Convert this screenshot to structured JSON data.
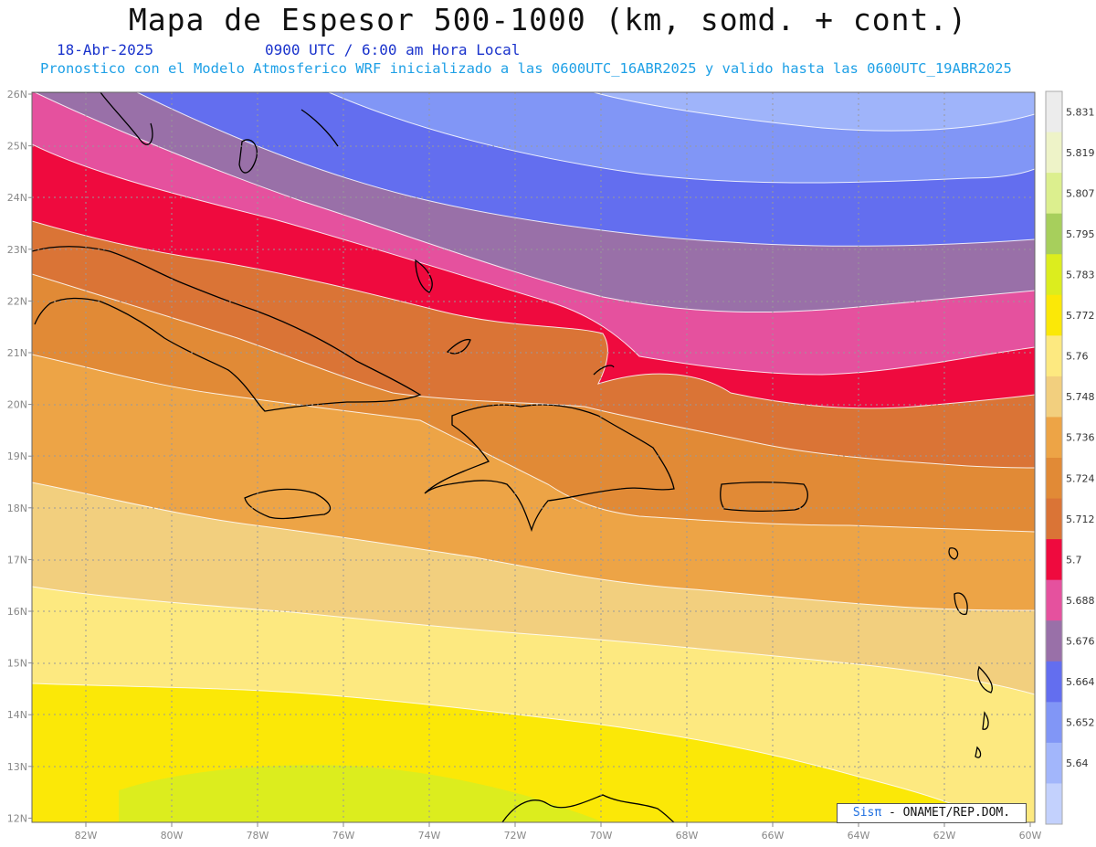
{
  "header": {
    "title": "Mapa de Espesor 500-1000 (km, somd. + cont.)",
    "date": "18-Abr-2025",
    "time": "0900 UTC / 6:00 am Hora Local",
    "info": "Pronostico con el Modelo Atmosferico WRF inicializado a las 0600UTC_16ABR2025 y valido hasta las  0600UTC_19ABR2025"
  },
  "map": {
    "lat_labels": [
      "26N",
      "25N",
      "24N",
      "23N",
      "22N",
      "21N",
      "20N",
      "19N",
      "18N",
      "17N",
      "16N",
      "15N",
      "14N",
      "13N",
      "12N"
    ],
    "lon_labels": [
      "82W",
      "80W",
      "78W",
      "76W",
      "74W",
      "72W",
      "70W",
      "68W",
      "66W",
      "64W",
      "62W",
      "60W"
    ],
    "lat_range": [
      12,
      26
    ],
    "lon_range": [
      -83.2,
      -60
    ],
    "gridlines": true
  },
  "colorbar": {
    "levels": [
      "5.831",
      "5.819",
      "5.807",
      "5.795",
      "5.783",
      "5.772",
      "5.76",
      "5.748",
      "5.736",
      "5.724",
      "5.712",
      "5.7",
      "5.688",
      "5.676",
      "5.664",
      "5.652",
      "5.64"
    ],
    "colors": [
      "#ececec",
      "#eef3c8",
      "#dcef8e",
      "#a7cf5c",
      "#dced1e",
      "#fbe807",
      "#fde980",
      "#f2cf7e",
      "#eda446",
      "#e18a36",
      "#da7436",
      "#ef0a3e",
      "#e5519e",
      "#9970a8",
      "#636eef",
      "#8196f6",
      "#a2b6fb",
      "#c3d1fd"
    ]
  },
  "credit": {
    "brand": "Sisπ",
    "org": " - ONAMET/REP.DOM."
  }
}
